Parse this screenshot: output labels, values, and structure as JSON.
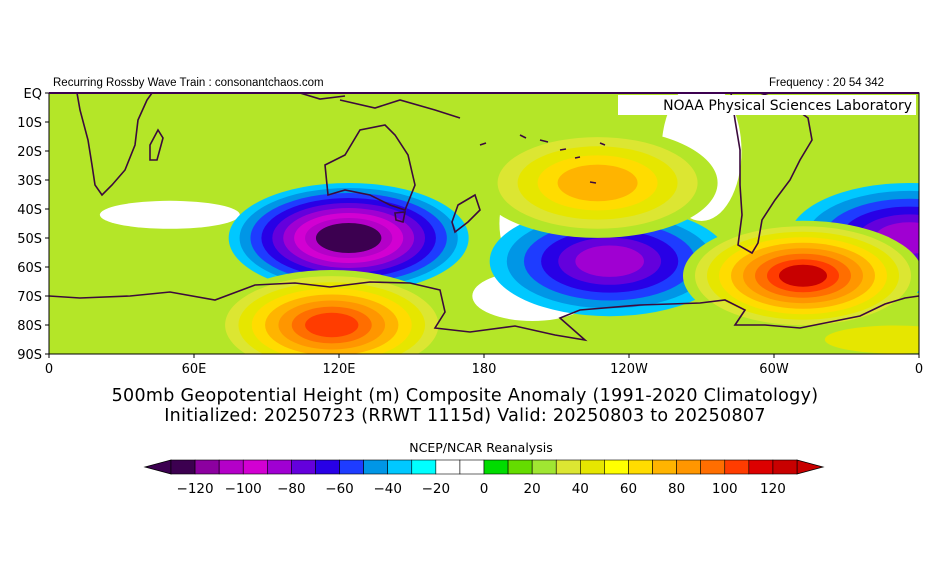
{
  "header": {
    "left_text": "Recurring Rossby Wave Train : consonantchaos.com",
    "right_text": "Frequency : 20 54 342"
  },
  "map": {
    "credit": "NOAA Physical Sciences Laboratory",
    "lat_labels": [
      "EQ",
      "10S",
      "20S",
      "30S",
      "40S",
      "50S",
      "60S",
      "70S",
      "80S",
      "90S"
    ],
    "lon_labels": [
      "0",
      "60E",
      "120E",
      "180",
      "120W",
      "60W",
      "0"
    ],
    "anomalies": [
      {
        "feature": "negative-anomaly",
        "center_lon": 124,
        "center_lat": -50,
        "value": -130
      },
      {
        "feature": "negative-anomaly",
        "center_lon": -128,
        "center_lat": -58,
        "value": -85
      },
      {
        "feature": "negative-anomaly",
        "center_lon": -4,
        "center_lat": -50,
        "value": -80
      },
      {
        "feature": "positive-anomaly",
        "center_lon": -48,
        "center_lat": -63,
        "value": 125
      },
      {
        "feature": "positive-anomaly",
        "center_lon": 117,
        "center_lat": -80,
        "value": 105
      },
      {
        "feature": "positive-anomaly",
        "center_lon": -133,
        "center_lat": -31,
        "value": 75
      }
    ]
  },
  "titles": {
    "line1": "500mb Geopotential Height (m) Composite Anomaly (1991-2020 Climatology)",
    "line2": "Initialized: 20250723 (RRWT 1115d) Valid: 20250803 to 20250807",
    "source": "NCEP/NCAR Reanalysis"
  },
  "colorbar": {
    "colors": [
      "#3c0050",
      "#8c00a0",
      "#b400c8",
      "#d200d2",
      "#a000d2",
      "#6400dc",
      "#2800e6",
      "#1e3cff",
      "#0096e6",
      "#00c8ff",
      "#00ffff",
      "#ffffff",
      "#ffffff",
      "#00dc00",
      "#64dc00",
      "#a0e632",
      "#dce632",
      "#e6e600",
      "#ffff00",
      "#ffdc00",
      "#ffb400",
      "#ff9600",
      "#ff6e00",
      "#ff3c00",
      "#dc0000",
      "#c80000"
    ],
    "tick_labels": [
      "-120",
      "-100",
      "-80",
      "-60",
      "-40",
      "-20",
      "0",
      "20",
      "40",
      "60",
      "80",
      "100",
      "120"
    ]
  }
}
